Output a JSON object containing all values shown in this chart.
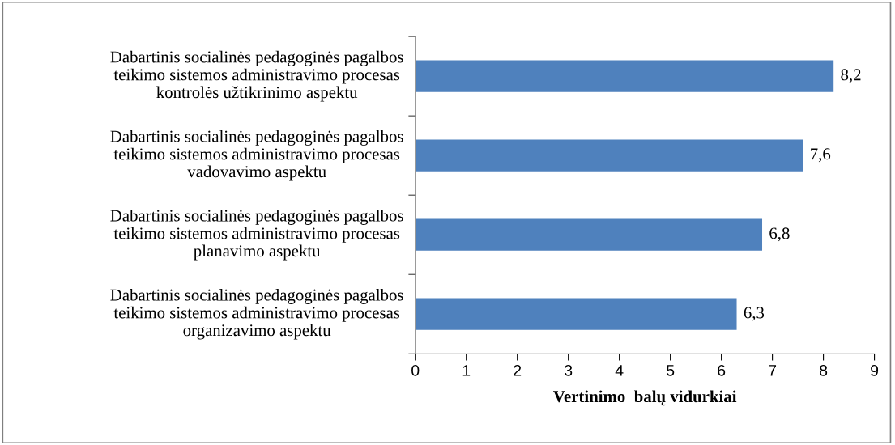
{
  "chart_data": {
    "type": "bar",
    "orientation": "horizontal",
    "xlabel": "Vertinimo  balų vidurkiai",
    "categories": [
      "Dabartinis socialinės pedagoginės pagalbos\nteikimo sistemos administravimo procesas\nkontrolės užtikrinimo aspektu",
      "Dabartinis socialinės pedagoginės pagalbos\nteikimo sistemos administravimo procesas\nvadovavimo aspektu",
      "Dabartinis socialinės pedagoginės pagalbos\nteikimo sistemos administravimo procesas\nplanavimo aspektu",
      "Dabartinis socialinės pedagoginės pagalbos\nteikimo sistemos administravimo procesas\norganizavimo aspektu"
    ],
    "values": [
      8.2,
      7.6,
      6.8,
      6.3
    ],
    "value_labels": [
      "8,2",
      "7,6",
      "6,8",
      "6,3"
    ],
    "color": "#4f81bd",
    "xlim": [
      0,
      9
    ],
    "xticks": [
      0,
      1,
      2,
      3,
      4,
      5,
      6,
      7,
      8,
      9
    ],
    "grid": false,
    "legend": false
  }
}
